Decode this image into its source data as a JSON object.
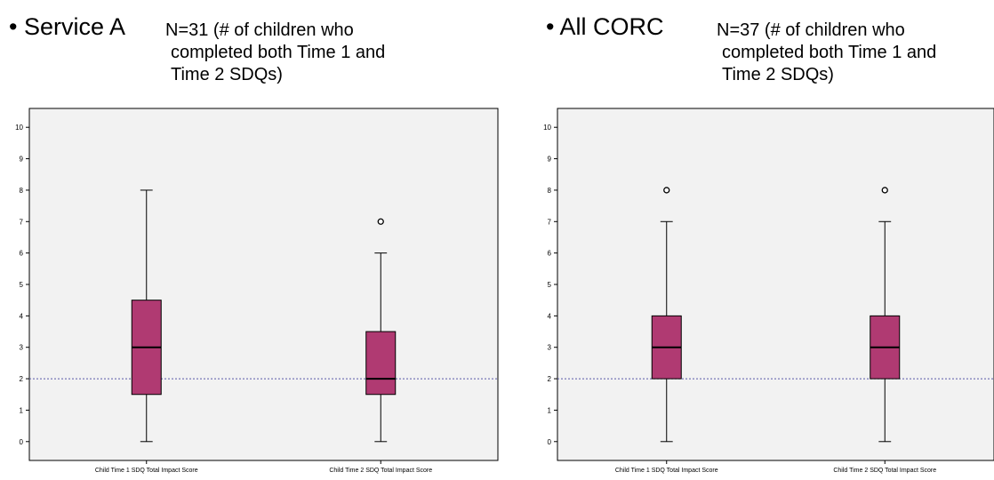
{
  "panels": [
    {
      "title": "• Service A",
      "note": [
        "N=31  (# of children who",
        "completed both Time 1 and",
        "Time 2 SDQs)"
      ]
    },
    {
      "title": "• All CORC",
      "note": [
        "N=37  (# of children who",
        "completed both Time 1 and",
        "Time 2 SDQs)"
      ]
    }
  ],
  "chart_data": [
    {
      "type": "boxplot",
      "categories": [
        "Child Time 1 SDQ Total Impact Score",
        "Child Time 2 SDQ Total Impact Score"
      ],
      "boxes": [
        {
          "min": 0,
          "q1": 1.5,
          "median": 3,
          "q3": 4.5,
          "max": 8,
          "outliers": []
        },
        {
          "min": 0,
          "q1": 1.5,
          "median": 2,
          "q3": 3.5,
          "max": 6,
          "outliers": [
            7
          ]
        }
      ],
      "yticks": [
        0,
        1,
        2,
        3,
        4,
        5,
        6,
        7,
        8,
        9,
        10
      ],
      "ylim": [
        -0.6,
        10.6
      ],
      "reference_line": 2,
      "box_color": "#b03a72",
      "reference_color": "#5a5aa8",
      "plot_background": "#f2f2f2"
    },
    {
      "type": "boxplot",
      "categories": [
        "Child Time 1 SDQ Total Impact Score",
        "Child Time 2 SDQ Total Impact Score"
      ],
      "boxes": [
        {
          "min": 0,
          "q1": 2,
          "median": 3,
          "q3": 4,
          "max": 7,
          "outliers": [
            8
          ]
        },
        {
          "min": 0,
          "q1": 2,
          "median": 3,
          "q3": 4,
          "max": 7,
          "outliers": [
            8
          ]
        }
      ],
      "yticks": [
        0,
        1,
        2,
        3,
        4,
        5,
        6,
        7,
        8,
        9,
        10
      ],
      "ylim": [
        -0.6,
        10.6
      ],
      "reference_line": 2,
      "box_color": "#b03a72",
      "reference_color": "#5a5aa8",
      "plot_background": "#f2f2f2"
    }
  ]
}
